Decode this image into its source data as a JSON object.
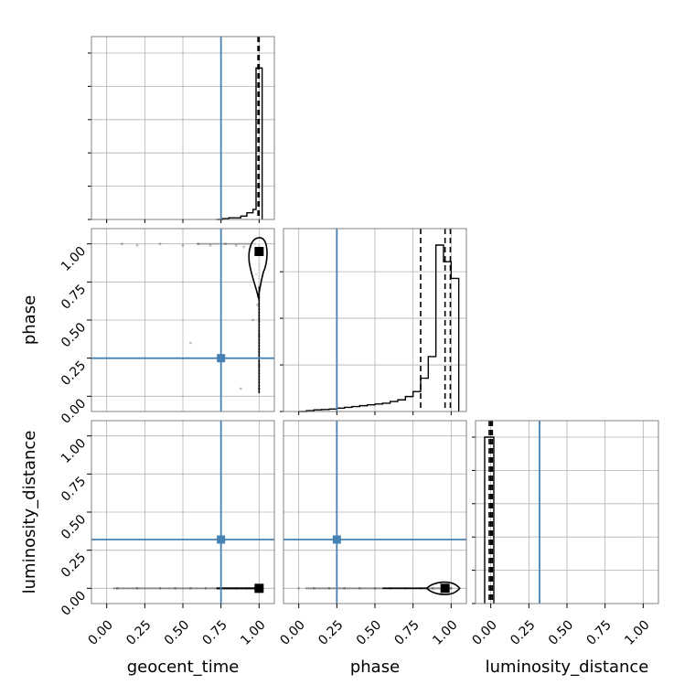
{
  "chart_data": {
    "type": "corner",
    "parameters": [
      "geocent_time",
      "phase",
      "luminosity_distance"
    ],
    "axis_ticks": [
      "0.00",
      "0.25",
      "0.50",
      "0.75",
      "1.00"
    ],
    "xlim": [
      -0.1,
      1.1
    ],
    "truths": {
      "geocent_time": 0.75,
      "phase": 0.25,
      "luminosity_distance": 0.32
    },
    "truth_color": "#4682b4",
    "grid": true,
    "histograms": {
      "geocent_time": {
        "bin_edges": [
          0.72,
          0.76,
          0.8,
          0.84,
          0.88,
          0.92,
          0.96,
          0.98,
          1.02
        ],
        "heights": [
          0.0,
          0.005,
          0.01,
          0.01,
          0.02,
          0.04,
          0.06,
          0.91
        ],
        "quantile_lines": [
          0.993,
          0.997,
          1.0
        ]
      },
      "phase": {
        "bin_edges": [
          0.0,
          0.05,
          0.1,
          0.15,
          0.2,
          0.25,
          0.3,
          0.35,
          0.4,
          0.45,
          0.5,
          0.55,
          0.6,
          0.65,
          0.7,
          0.75,
          0.8,
          0.85,
          0.9,
          0.95,
          1.0,
          1.05
        ],
        "heights": [
          0.0,
          0.005,
          0.01,
          0.012,
          0.015,
          0.02,
          0.025,
          0.03,
          0.035,
          0.04,
          0.045,
          0.05,
          0.06,
          0.07,
          0.09,
          0.12,
          0.2,
          0.33,
          1.0,
          0.9,
          0.8
        ],
        "quantile_lines": [
          0.8,
          0.96,
          0.995
        ]
      },
      "luminosity_distance": {
        "bin_edges": [
          -0.04,
          0.02
        ],
        "heights": [
          1.0
        ],
        "quantile_lines": [
          -0.01,
          0.0,
          0.01
        ]
      }
    },
    "scatter_2d": {
      "phase_vs_geocent_time": {
        "samples": [
          [
            0.1,
            1.0
          ],
          [
            0.2,
            0.99
          ],
          [
            0.35,
            1.0
          ],
          [
            0.5,
            0.99
          ],
          [
            0.6,
            1.0
          ],
          [
            0.68,
            0.99
          ],
          [
            0.78,
            1.0
          ],
          [
            0.85,
            0.99
          ],
          [
            0.9,
            0.98
          ],
          [
            0.95,
            0.97
          ],
          [
            0.97,
            1.0
          ],
          [
            0.98,
            0.8
          ],
          [
            0.99,
            0.6
          ],
          [
            1.0,
            0.4
          ],
          [
            1.0,
            0.2
          ],
          [
            1.0,
            0.05
          ],
          [
            0.55,
            0.35
          ],
          [
            0.88,
            0.05
          ],
          [
            0.96,
            0.5
          ]
        ],
        "density_center": [
          0.98,
          0.95
        ]
      },
      "luminosity_distance_vs_geocent_time": {
        "samples": [
          [
            0.07,
            0.0
          ],
          [
            0.2,
            0.0
          ],
          [
            0.35,
            0.0
          ],
          [
            0.45,
            0.0
          ],
          [
            0.55,
            0.0
          ],
          [
            0.65,
            0.0
          ],
          [
            0.75,
            0.0
          ],
          [
            0.85,
            0.0
          ],
          [
            0.92,
            0.0
          ],
          [
            0.97,
            0.0
          ]
        ],
        "density_center": [
          1.0,
          0.0
        ]
      },
      "luminosity_distance_vs_phase": {
        "samples": [
          [
            0.0,
            0.0
          ],
          [
            0.1,
            0.0
          ],
          [
            0.2,
            0.0
          ],
          [
            0.3,
            0.0
          ],
          [
            0.4,
            0.0
          ],
          [
            0.5,
            0.0
          ],
          [
            0.6,
            0.0
          ],
          [
            0.7,
            0.0
          ],
          [
            0.8,
            0.0
          ],
          [
            0.88,
            0.0
          ],
          [
            0.95,
            0.0
          ],
          [
            1.0,
            0.0
          ]
        ],
        "density_center": [
          0.96,
          0.0
        ]
      }
    }
  }
}
